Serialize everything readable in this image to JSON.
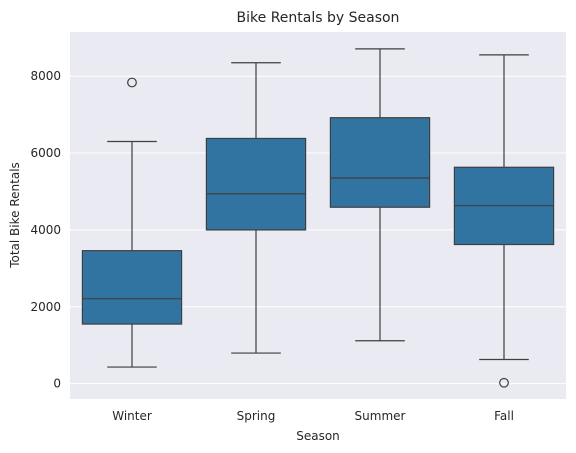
{
  "chart_data": {
    "type": "box",
    "title": "Bike Rentals by Season",
    "xlabel": "Season",
    "ylabel": "Total Bike Rentals",
    "categories": [
      "Winter",
      "Spring",
      "Summer",
      "Fall"
    ],
    "ylim": [
      -400,
      9150
    ],
    "yticks": [
      0,
      2000,
      4000,
      6000,
      8000
    ],
    "grid": true,
    "box_color": "#3274a1",
    "line_color": "#3f3f3f",
    "background_color": "#eaeaf2",
    "grid_color": "#ffffff",
    "boxes": [
      {
        "category": "Winter",
        "whisker_low": 431,
        "q1": 1550,
        "median": 2210,
        "q3": 3460,
        "whisker_high": 6300,
        "outliers": [
          7836
        ]
      },
      {
        "category": "Spring",
        "whisker_low": 795,
        "q1": 4000,
        "median": 4940,
        "q3": 6380,
        "whisker_high": 8350,
        "outliers": []
      },
      {
        "category": "Summer",
        "whisker_low": 1115,
        "q1": 4590,
        "median": 5350,
        "q3": 6920,
        "whisker_high": 8710,
        "outliers": []
      },
      {
        "category": "Fall",
        "whisker_low": 627,
        "q1": 3620,
        "median": 4630,
        "q3": 5630,
        "whisker_high": 8555,
        "outliers": [
          22
        ]
      }
    ]
  }
}
